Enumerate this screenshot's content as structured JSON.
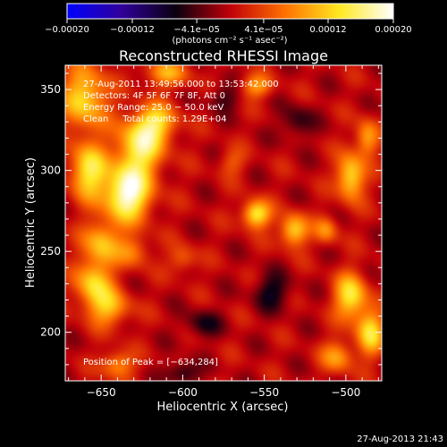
{
  "chart_data": {
    "type": "heatmap",
    "title": "Reconstructed RHESSI Image",
    "xlabel": "Heliocentric X (arcsec)",
    "ylabel": "Heliocentric Y (arcsec)",
    "xlim": [
      -672,
      -478
    ],
    "ylim": [
      170,
      365
    ],
    "xticks": [
      -650,
      -600,
      -550,
      -500
    ],
    "xtick_labels": [
      "−650",
      "−600",
      "−550",
      "−500"
    ],
    "yticks": [
      200,
      250,
      300,
      350
    ],
    "ytick_labels": [
      "200",
      "250",
      "300",
      "350"
    ],
    "colorbar": {
      "range": [
        -0.0002,
        0.0002
      ],
      "ticks": [
        -0.0002,
        -0.00012,
        -4.1e-05,
        4.1e-05,
        0.00012,
        0.0002
      ],
      "tick_labels": [
        "−0.00020",
        "−0.00012",
        "−4.1e−05",
        "4.1e−05",
        "0.00012",
        "0.00020"
      ],
      "units": "(photons cm⁻² s⁻¹ asec⁻²)",
      "colors": [
        "#0000ff",
        "#30009a",
        "#0a0010",
        "#c0000a",
        "#ff7000",
        "#ffe820",
        "#ffffff"
      ]
    },
    "info_lines": [
      "27-Aug-2011 13:49:56.000 to 13:53:42.000",
      "Detectors: 4F 5F 6F 7F 8F, Att 0",
      "Energy Range: 25.0 − 50.0 keV",
      "Clean     Total counts: 1.29E+04"
    ],
    "peak_label": "Position of Peak = [−634,284]",
    "peak": {
      "x": -634,
      "y": 284
    },
    "sources": [
      {
        "x": -634,
        "y": 286,
        "amp": 1.0,
        "sx": 10,
        "sy": 12
      },
      {
        "x": -626,
        "y": 315,
        "amp": 0.75,
        "sx": 10,
        "sy": 12
      },
      {
        "x": -616,
        "y": 330,
        "amp": 0.55,
        "sx": 9,
        "sy": 8
      },
      {
        "x": -658,
        "y": 300,
        "amp": 0.7,
        "sx": 8,
        "sy": 12
      },
      {
        "x": -660,
        "y": 345,
        "amp": 0.65,
        "sx": 10,
        "sy": 14
      },
      {
        "x": -650,
        "y": 255,
        "amp": 0.55,
        "sx": 8,
        "sy": 10
      },
      {
        "x": -655,
        "y": 230,
        "amp": 0.6,
        "sx": 8,
        "sy": 10
      },
      {
        "x": -645,
        "y": 215,
        "amp": 0.5,
        "sx": 9,
        "sy": 8
      },
      {
        "x": -630,
        "y": 250,
        "amp": 0.35,
        "sx": 7,
        "sy": 7
      },
      {
        "x": -610,
        "y": 360,
        "amp": 0.45,
        "sx": 10,
        "sy": 6
      },
      {
        "x": -555,
        "y": 273,
        "amp": 0.75,
        "sx": 6,
        "sy": 6
      },
      {
        "x": -532,
        "y": 263,
        "amp": 0.65,
        "sx": 6,
        "sy": 7
      },
      {
        "x": -512,
        "y": 263,
        "amp": 0.4,
        "sx": 5,
        "sy": 6
      },
      {
        "x": -555,
        "y": 352,
        "amp": 0.45,
        "sx": 7,
        "sy": 5
      },
      {
        "x": -497,
        "y": 296,
        "amp": 0.7,
        "sx": 6,
        "sy": 10
      },
      {
        "x": -487,
        "y": 320,
        "amp": 0.5,
        "sx": 5,
        "sy": 8
      },
      {
        "x": -497,
        "y": 222,
        "amp": 0.7,
        "sx": 7,
        "sy": 10
      },
      {
        "x": -485,
        "y": 200,
        "amp": 0.65,
        "sx": 6,
        "sy": 10
      },
      {
        "x": -505,
        "y": 185,
        "amp": 0.45,
        "sx": 7,
        "sy": 7
      },
      {
        "x": -600,
        "y": 245,
        "amp": 0.3,
        "sx": 6,
        "sy": 6
      },
      {
        "x": -570,
        "y": 305,
        "amp": 0.25,
        "sx": 6,
        "sy": 6
      },
      {
        "x": -640,
        "y": 180,
        "amp": 0.45,
        "sx": 7,
        "sy": 6
      },
      {
        "x": -545,
        "y": 225,
        "amp": -0.35,
        "sx": 8,
        "sy": 8
      },
      {
        "x": -588,
        "y": 205,
        "amp": -0.3,
        "sx": 8,
        "sy": 6
      },
      {
        "x": -600,
        "y": 175,
        "amp": -0.35,
        "sx": 7,
        "sy": 5
      },
      {
        "x": -530,
        "y": 330,
        "amp": -0.3,
        "sx": 7,
        "sy": 7
      },
      {
        "x": -575,
        "y": 345,
        "amp": -0.25,
        "sx": 7,
        "sy": 6
      }
    ]
  },
  "footer": {
    "timestamp": "27-Aug-2013 21:43"
  }
}
